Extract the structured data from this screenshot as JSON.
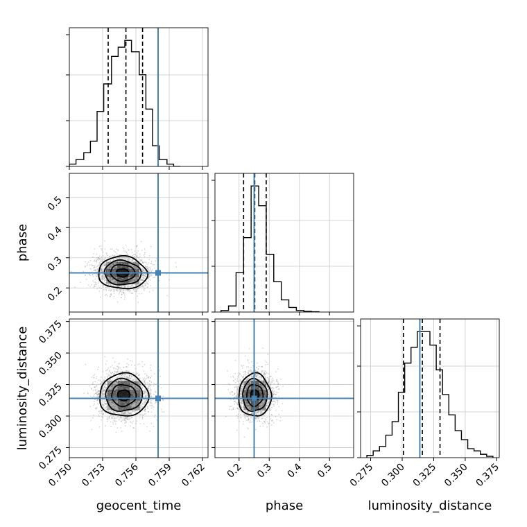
{
  "chart_data": {
    "type": "corner",
    "parameters": [
      "geocent_time",
      "phase",
      "luminosity_distance"
    ],
    "axis_labels": {
      "geocent_time": "geocent_time",
      "phase": "phase",
      "luminosity_distance": "luminosity_distance"
    },
    "ranges": {
      "geocent_time": [
        0.75,
        0.7625
      ],
      "phase": [
        0.12,
        0.58
      ],
      "luminosity_distance": [
        0.267,
        0.377
      ]
    },
    "ticks": {
      "geocent_time": [
        0.75,
        0.753,
        0.756,
        0.759,
        0.762
      ],
      "phase": [
        0.2,
        0.3,
        0.4,
        0.5
      ],
      "luminosity_distance": [
        0.275,
        0.3,
        0.325,
        0.35,
        0.375
      ]
    },
    "tick_labels": {
      "geocent_time": [
        "0.750",
        "0.753",
        "0.756",
        "0.759",
        "0.762"
      ],
      "phase": [
        "0.2",
        "0.3",
        "0.4",
        "0.5"
      ],
      "luminosity_distance": [
        "0.275",
        "0.300",
        "0.325",
        "0.350",
        "0.375"
      ]
    },
    "truths": {
      "geocent_time": 0.758,
      "phase": 0.25,
      "luminosity_distance": 0.314
    },
    "quantiles": {
      "geocent_time": [
        0.7535,
        0.7551,
        0.7566
      ],
      "phase": [
        0.215,
        0.252,
        0.29
      ],
      "luminosity_distance": [
        0.301,
        0.316,
        0.33
      ]
    },
    "histograms": {
      "geocent_time": {
        "edges": [
          0.75,
          0.7506,
          0.7513,
          0.7519,
          0.7525,
          0.7531,
          0.7538,
          0.7544,
          0.755,
          0.7556,
          0.7563,
          0.7569,
          0.7575,
          0.7581,
          0.7588,
          0.7594,
          0.76
        ],
        "counts": [
          1,
          3,
          6,
          11,
          24,
          36,
          48,
          52,
          55,
          50,
          40,
          25,
          9,
          3,
          1,
          0
        ]
      },
      "phase": {
        "edges": [
          0.14,
          0.165,
          0.19,
          0.215,
          0.24,
          0.265,
          0.29,
          0.315,
          0.34,
          0.365,
          0.39,
          0.415,
          0.44,
          0.465
        ],
        "counts": [
          1,
          4,
          26,
          49,
          83,
          70,
          38,
          20,
          8,
          3,
          1,
          0.5,
          0.2
        ]
      },
      "luminosity_distance": {
        "edges": [
          0.272,
          0.277,
          0.282,
          0.287,
          0.292,
          0.297,
          0.302,
          0.307,
          0.312,
          0.317,
          0.322,
          0.327,
          0.332,
          0.337,
          0.342,
          0.347,
          0.352,
          0.357,
          0.362,
          0.367,
          0.372
        ],
        "counts": [
          1,
          3,
          5,
          10,
          16,
          29,
          42,
          49,
          56,
          56,
          50,
          39,
          28,
          19,
          12,
          8,
          4,
          3,
          1.5,
          0.6
        ]
      }
    },
    "density_2d": [
      {
        "x": "geocent_time",
        "y": "phase",
        "center": [
          0.7548,
          0.25
        ],
        "sigma": [
          0.0011,
          0.027
        ],
        "corr": -0.05
      },
      {
        "x": "geocent_time",
        "y": "luminosity_distance",
        "center": [
          0.7549,
          0.3165
        ],
        "sigma": [
          0.0011,
          0.0085
        ],
        "corr": 0.0
      },
      {
        "x": "phase",
        "y": "luminosity_distance",
        "center": [
          0.252,
          0.3165
        ],
        "sigma": [
          0.027,
          0.0085
        ],
        "corr": 0.0
      }
    ],
    "colors": {
      "truth": "#4682b4",
      "hist": "#000000",
      "quantile": "#000000",
      "grid": "#c8c8c8",
      "scatter": "#8a8a8a"
    },
    "grid": true
  }
}
